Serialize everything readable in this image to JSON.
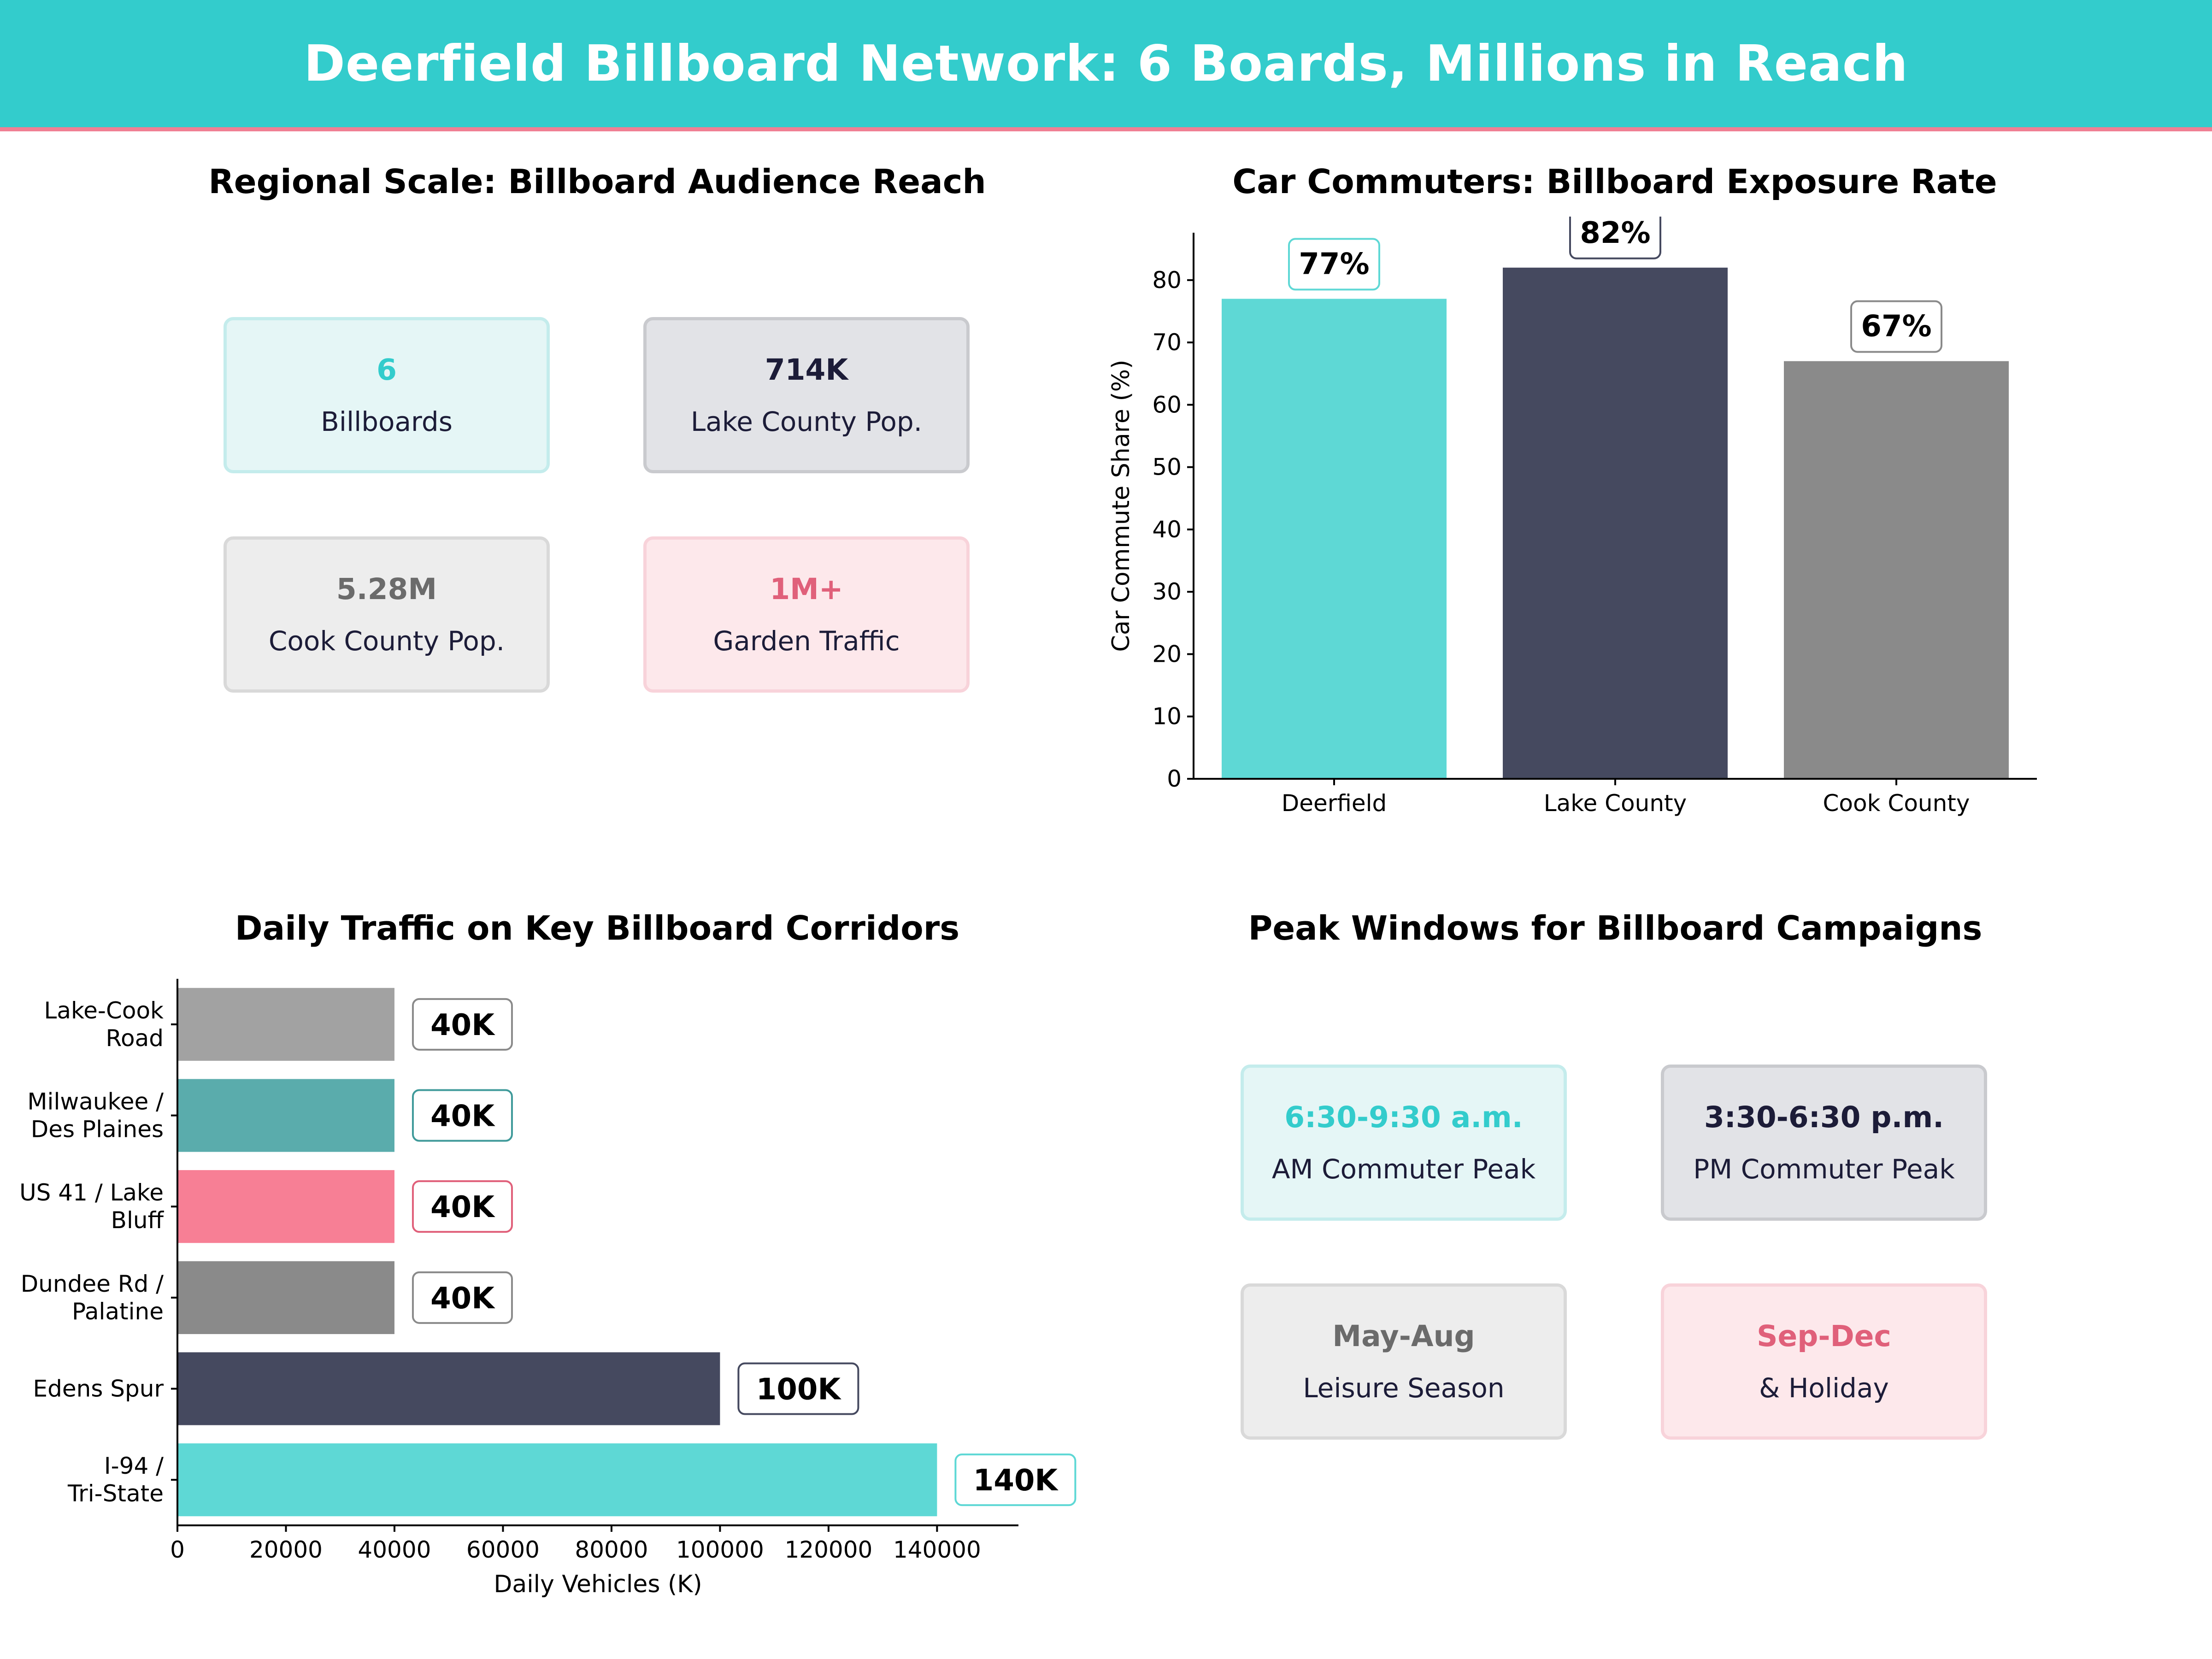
{
  "header": {
    "title": "Deerfield Billboard Network: 6 Boards, Millions in Reach",
    "color": "#33cccc"
  },
  "reach_panel": {
    "title": "Regional Scale: Billboard Audience Reach",
    "cards": [
      {
        "value": "6",
        "label": "Billboards",
        "accent": "#33cccc",
        "bg": "#e5f6f6",
        "border": "#c4ecec"
      },
      {
        "value": "714K",
        "label": "Lake County Pop.",
        "accent": "#1c1c38",
        "bg": "#e2e3e7",
        "border": "#c9cace"
      },
      {
        "value": "5.28M",
        "label": "Cook County Pop.",
        "accent": "#6b6b6b",
        "bg": "#ededed",
        "border": "#d9d9d9"
      },
      {
        "value": "1M+",
        "label": "Garden Traffic",
        "accent": "#e0607a",
        "bg": "#fde8eb",
        "border": "#f8d3da"
      }
    ]
  },
  "peak_panel": {
    "title": "Peak Windows for Billboard Campaigns",
    "cards": [
      {
        "value": "6:30-9:30 a.m.",
        "label": "AM Commuter Peak",
        "accent": "#33cccc",
        "bg": "#e5f6f6",
        "border": "#c4ecec"
      },
      {
        "value": "3:30-6:30 p.m.",
        "label": "PM Commuter Peak",
        "accent": "#1c1c38",
        "bg": "#e2e3e7",
        "border": "#c9cace"
      },
      {
        "value": "May-Aug",
        "label": "Leisure Season",
        "accent": "#6b6b6b",
        "bg": "#ededed",
        "border": "#d9d9d9"
      },
      {
        "value": "Sep-Dec",
        "label": "& Holiday",
        "accent": "#e0607a",
        "bg": "#fde8eb",
        "border": "#f8d3da"
      }
    ]
  },
  "chart_data": [
    {
      "type": "bar",
      "title": "Car Commuters: Billboard Exposure Rate",
      "categories": [
        "Deerfield",
        "Lake County",
        "Cook County"
      ],
      "values": [
        77,
        82,
        67
      ],
      "data_labels": [
        "77%",
        "82%",
        "67%"
      ],
      "colors": [
        "#5ed8d5",
        "#45495f",
        "#8a8a8a"
      ],
      "label_borders": [
        "#5ed8d5",
        "#45495f",
        "#8a8a8a"
      ],
      "xlabel": "",
      "ylabel": "Car Commute Share (%)",
      "ylim": [
        0,
        87.6
      ],
      "yticks": [
        0,
        10,
        20,
        30,
        40,
        50,
        60,
        70,
        80
      ],
      "grid": false
    },
    {
      "type": "bar",
      "orientation": "horizontal",
      "title": "Daily Traffic on Key Billboard Corridors",
      "categories": [
        [
          "I-94 /",
          "Tri-State"
        ],
        [
          "Edens Spur"
        ],
        [
          "Dundee Rd /",
          "Palatine"
        ],
        [
          "US 41 / Lake",
          "Bluff"
        ],
        [
          "Milwaukee /",
          "Des Plaines"
        ],
        [
          "Lake-Cook",
          "Road"
        ]
      ],
      "values": [
        140000,
        100000,
        40000,
        40000,
        40000,
        40000
      ],
      "data_labels": [
        "140K",
        "100K",
        "40K",
        "40K",
        "40K",
        "40K"
      ],
      "colors": [
        "#5ed8d5",
        "#45495f",
        "#8a8a8a",
        "#f77f95",
        "#5aacac",
        "#a2a2a2"
      ],
      "label_borders": [
        "#5ed8d5",
        "#45495f",
        "#8a8a8a",
        "#e0607a",
        "#3f9a9a",
        "#8a8a8a"
      ],
      "xlabel": "Daily Vehicles (K)",
      "ylabel": "",
      "xlim": [
        0,
        155000
      ],
      "xticks": [
        0,
        20000,
        40000,
        60000,
        80000,
        100000,
        120000,
        140000
      ],
      "grid": false
    }
  ]
}
